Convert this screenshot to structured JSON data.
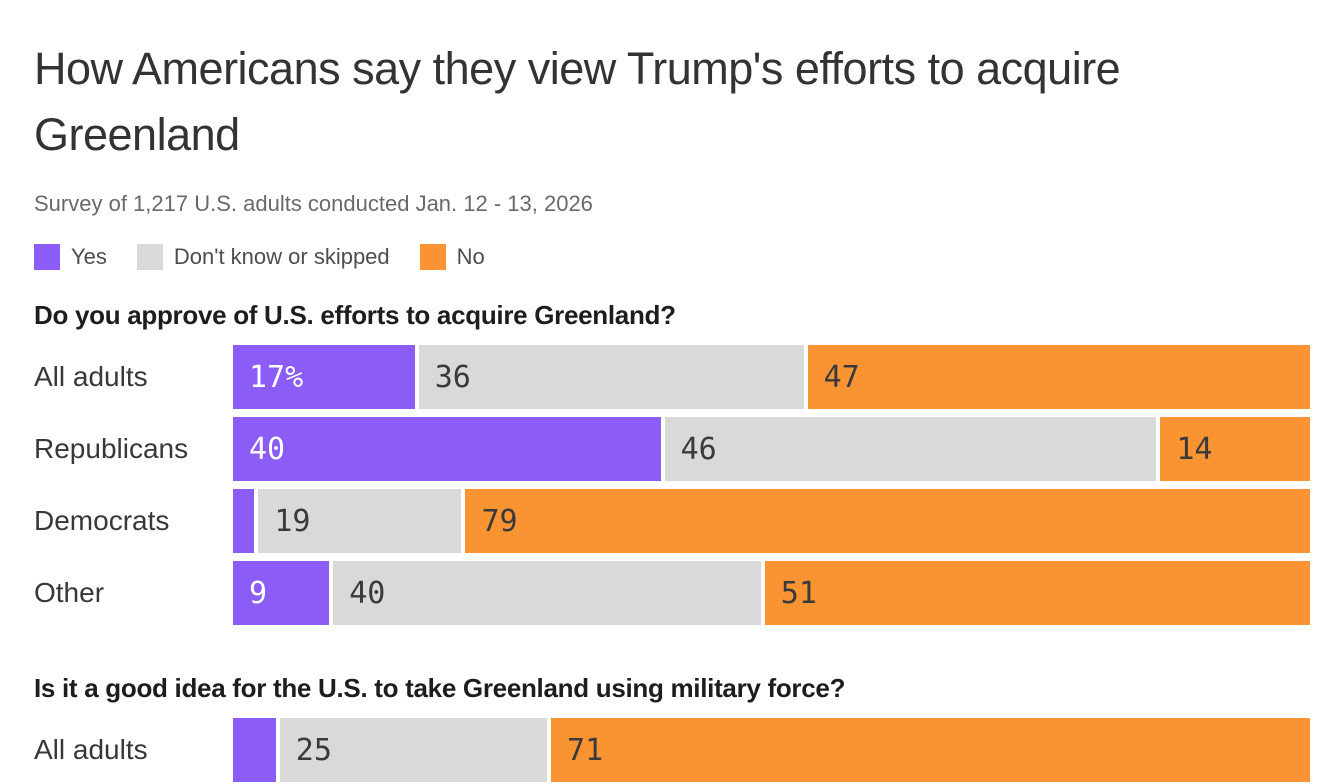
{
  "header": {
    "title": "How Americans say they view Trump's efforts to acquire Greenland",
    "subtitle": "Survey of 1,217 U.S. adults conducted Jan. 12 - 13, 2026"
  },
  "colors": {
    "yes": "#8b5cf6",
    "dk": "#d9d9d9",
    "no": "#fa9432"
  },
  "legend": {
    "items": [
      {
        "key": "yes",
        "label": "Yes"
      },
      {
        "key": "dk",
        "label": "Don't know or skipped"
      },
      {
        "key": "no",
        "label": "No"
      }
    ]
  },
  "charts": [
    {
      "question": "Do you approve of U.S. efforts to acquire Greenland?",
      "rows": [
        {
          "label": "All adults",
          "segments": [
            {
              "series": "yes",
              "value": 17,
              "display": "17%"
            },
            {
              "series": "dk",
              "value": 36,
              "display": "36"
            },
            {
              "series": "no",
              "value": 47,
              "display": "47"
            }
          ]
        },
        {
          "label": "Republicans",
          "segments": [
            {
              "series": "yes",
              "value": 40,
              "display": "40"
            },
            {
              "series": "dk",
              "value": 46,
              "display": "46"
            },
            {
              "series": "no",
              "value": 14,
              "display": "14"
            }
          ]
        },
        {
          "label": "Democrats",
          "segments": [
            {
              "series": "yes",
              "value": 2,
              "display": ""
            },
            {
              "series": "dk",
              "value": 19,
              "display": "19"
            },
            {
              "series": "no",
              "value": 79,
              "display": "79"
            }
          ]
        },
        {
          "label": "Other",
          "segments": [
            {
              "series": "yes",
              "value": 9,
              "display": "9"
            },
            {
              "series": "dk",
              "value": 40,
              "display": "40"
            },
            {
              "series": "no",
              "value": 51,
              "display": "51"
            }
          ]
        }
      ]
    },
    {
      "question": "Is it a good idea for the U.S. to take Greenland using military force?",
      "rows": [
        {
          "label": "All adults",
          "segments": [
            {
              "series": "yes",
              "value": 4,
              "display": ""
            },
            {
              "series": "dk",
              "value": 25,
              "display": "25"
            },
            {
              "series": "no",
              "value": 71,
              "display": "71"
            }
          ]
        }
      ]
    }
  ],
  "chart_data": [
    {
      "type": "bar",
      "subtype": "horizontal-stacked-100pct",
      "title": "Do you approve of U.S. efforts to acquire Greenland?",
      "categories": [
        "All adults",
        "Republicans",
        "Democrats",
        "Other"
      ],
      "series": [
        {
          "name": "Yes",
          "values": [
            17,
            40,
            2,
            9
          ]
        },
        {
          "name": "Don't know or skipped",
          "values": [
            36,
            46,
            19,
            40
          ]
        },
        {
          "name": "No",
          "values": [
            47,
            14,
            79,
            51
          ]
        }
      ],
      "xlim": [
        0,
        100
      ],
      "unit": "percent",
      "legend_position": "top",
      "grid": false,
      "notes": "Unlabeled 'Yes' sliver for Democrats estimated at 2 from bar width"
    },
    {
      "type": "bar",
      "subtype": "horizontal-stacked-100pct",
      "title": "Is it a good idea for the U.S. to take Greenland using military force?",
      "categories": [
        "All adults"
      ],
      "series": [
        {
          "name": "Yes",
          "values": [
            4
          ]
        },
        {
          "name": "Don't know or skipped",
          "values": [
            25
          ]
        },
        {
          "name": "No",
          "values": [
            71
          ]
        }
      ],
      "xlim": [
        0,
        100
      ],
      "unit": "percent",
      "legend_position": "top",
      "grid": false,
      "notes": "Row partially cut off at bottom of screenshot; unlabeled 'Yes' sliver estimated at 4 from bar width"
    }
  ]
}
